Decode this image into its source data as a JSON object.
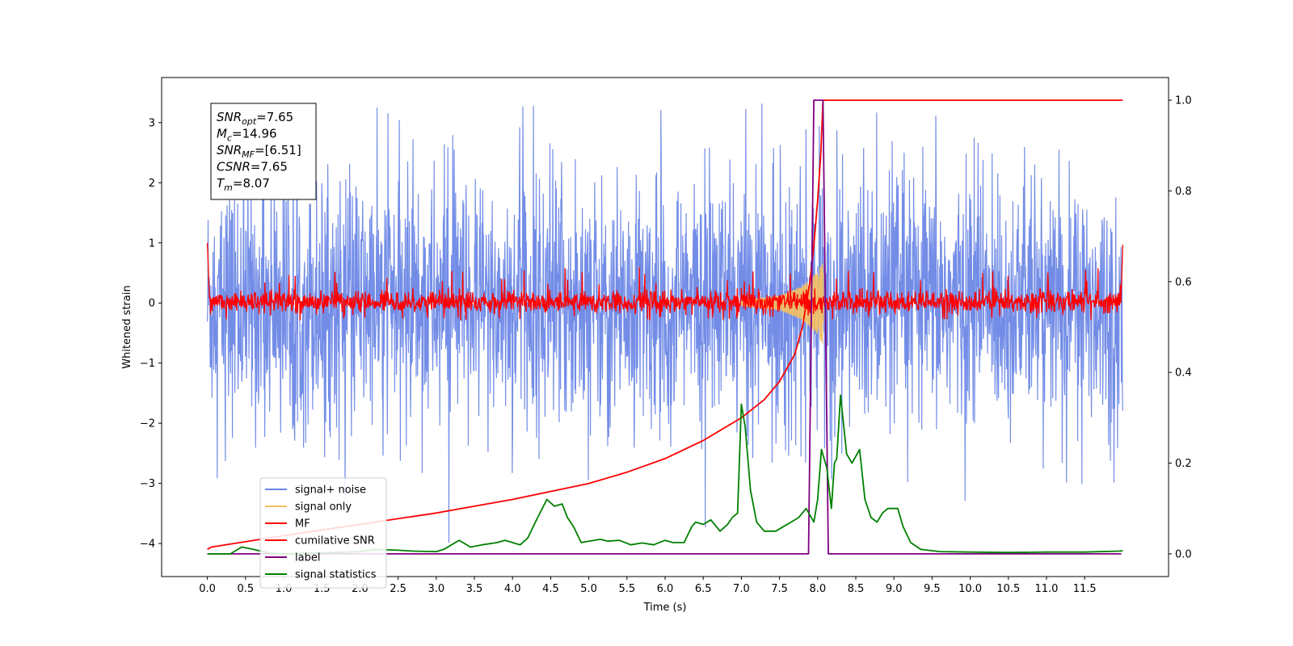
{
  "chart_data": {
    "type": "line",
    "title": "",
    "xlabel": "Time (s)",
    "ylabel": "Whitened strain",
    "xlim": [
      -0.6,
      12.6
    ],
    "ylim": [
      -4.55,
      3.75
    ],
    "y2lim": [
      -0.05,
      1.05
    ],
    "x_ticks": [
      0.0,
      0.5,
      1.0,
      1.5,
      2.0,
      2.5,
      3.0,
      3.5,
      4.0,
      4.5,
      5.0,
      5.5,
      6.0,
      6.5,
      7.0,
      7.5,
      8.0,
      8.5,
      9.0,
      9.5,
      10.0,
      10.5,
      11.0,
      11.5
    ],
    "x_tick_labels": [
      "0.0",
      "0.5",
      "1.0",
      "1.5",
      "2.0",
      "2.5",
      "3.0",
      "3.5",
      "4.0",
      "4.5",
      "5.0",
      "5.5",
      "6.0",
      "6.5",
      "7.0",
      "7.5",
      "8.0",
      "8.5",
      "9.0",
      "9.5",
      "10.0",
      "10.5",
      "11.0",
      "11.5"
    ],
    "y_ticks": [
      -4,
      -3,
      -2,
      -1,
      0,
      1,
      2,
      3
    ],
    "y_tick_labels": [
      "−4",
      "−3",
      "−2",
      "−1",
      "0",
      "1",
      "2",
      "3"
    ],
    "y2_ticks": [
      0.0,
      0.2,
      0.4,
      0.6,
      0.8,
      1.0
    ],
    "y2_tick_labels": [
      "0.0",
      "0.2",
      "0.4",
      "0.6",
      "0.8",
      "1.0"
    ],
    "grid": false,
    "legend_position": "bottom-left",
    "series": [
      {
        "name": "signal+ noise",
        "axis": "left",
        "color": "#6b87e6",
        "style": "noise envelope",
        "x_range": [
          0.0,
          12.0
        ],
        "typical_range": [
          -1.6,
          1.6
        ],
        "peak_max": 3.42,
        "peak_min": -4.35
      },
      {
        "name": "signal only",
        "axis": "left",
        "color": "#f5c060",
        "style": "chirp",
        "x_range": [
          7.0,
          8.07
        ],
        "amplitude_envelope": [
          [
            7.0,
            0.05
          ],
          [
            7.5,
            0.12
          ],
          [
            7.8,
            0.28
          ],
          [
            8.0,
            0.52
          ],
          [
            8.07,
            0.7
          ],
          [
            8.08,
            0.0
          ]
        ]
      },
      {
        "name": "MF",
        "axis": "left",
        "color": "#ff0000",
        "style": "noise envelope",
        "x_range": [
          0.0,
          12.0
        ],
        "typical_range": [
          -0.2,
          0.25
        ],
        "peak_max": 0.62,
        "peak_min": -0.3,
        "endpoints": [
          [
            0.0,
            1.0
          ],
          [
            0.02,
            -0.2
          ],
          [
            11.98,
            -0.2
          ],
          [
            12.0,
            0.97
          ]
        ]
      },
      {
        "name": "cumilative SNR",
        "axis": "right",
        "color": "#ff0000",
        "points": [
          [
            0.0,
            0.01
          ],
          [
            0.05,
            0.015
          ],
          [
            1.0,
            0.04
          ],
          [
            2.0,
            0.065
          ],
          [
            3.0,
            0.09
          ],
          [
            4.0,
            0.12
          ],
          [
            5.0,
            0.155
          ],
          [
            5.5,
            0.18
          ],
          [
            6.0,
            0.21
          ],
          [
            6.5,
            0.25
          ],
          [
            7.0,
            0.3
          ],
          [
            7.3,
            0.34
          ],
          [
            7.5,
            0.38
          ],
          [
            7.7,
            0.44
          ],
          [
            7.8,
            0.5
          ],
          [
            7.9,
            0.6
          ],
          [
            7.95,
            0.68
          ],
          [
            8.0,
            0.78
          ],
          [
            8.04,
            0.88
          ],
          [
            8.07,
            1.0
          ],
          [
            12.0,
            1.0
          ]
        ]
      },
      {
        "name": "label",
        "axis": "right",
        "color": "#800080",
        "points": [
          [
            0.0,
            0.0
          ],
          [
            7.88,
            0.0
          ],
          [
            7.95,
            1.0
          ],
          [
            8.07,
            1.0
          ],
          [
            8.14,
            0.0
          ],
          [
            11.98,
            0.0
          ]
        ]
      },
      {
        "name": "signal statistics",
        "axis": "right",
        "color": "#008000",
        "points": [
          [
            0.0,
            0.0
          ],
          [
            0.3,
            0.0
          ],
          [
            0.45,
            0.015
          ],
          [
            0.6,
            0.01
          ],
          [
            0.8,
            0.002
          ],
          [
            1.0,
            0.0
          ],
          [
            1.5,
            0.002
          ],
          [
            2.0,
            0.005
          ],
          [
            2.2,
            0.01
          ],
          [
            2.5,
            0.008
          ],
          [
            2.7,
            0.006
          ],
          [
            3.0,
            0.005
          ],
          [
            3.1,
            0.01
          ],
          [
            3.3,
            0.03
          ],
          [
            3.45,
            0.015
          ],
          [
            3.6,
            0.02
          ],
          [
            3.8,
            0.025
          ],
          [
            3.9,
            0.03
          ],
          [
            4.0,
            0.025
          ],
          [
            4.1,
            0.02
          ],
          [
            4.2,
            0.035
          ],
          [
            4.3,
            0.07
          ],
          [
            4.45,
            0.12
          ],
          [
            4.55,
            0.105
          ],
          [
            4.65,
            0.11
          ],
          [
            4.72,
            0.08
          ],
          [
            4.8,
            0.06
          ],
          [
            4.9,
            0.025
          ],
          [
            5.0,
            0.028
          ],
          [
            5.15,
            0.032
          ],
          [
            5.25,
            0.028
          ],
          [
            5.4,
            0.03
          ],
          [
            5.55,
            0.02
          ],
          [
            5.7,
            0.024
          ],
          [
            5.85,
            0.02
          ],
          [
            6.0,
            0.03
          ],
          [
            6.1,
            0.025
          ],
          [
            6.25,
            0.025
          ],
          [
            6.35,
            0.06
          ],
          [
            6.4,
            0.07
          ],
          [
            6.5,
            0.065
          ],
          [
            6.6,
            0.075
          ],
          [
            6.72,
            0.05
          ],
          [
            6.82,
            0.065
          ],
          [
            6.88,
            0.08
          ],
          [
            6.95,
            0.09
          ],
          [
            7.0,
            0.33
          ],
          [
            7.05,
            0.28
          ],
          [
            7.12,
            0.14
          ],
          [
            7.2,
            0.07
          ],
          [
            7.3,
            0.05
          ],
          [
            7.45,
            0.05
          ],
          [
            7.55,
            0.06
          ],
          [
            7.65,
            0.07
          ],
          [
            7.75,
            0.08
          ],
          [
            7.85,
            0.1
          ],
          [
            7.95,
            0.07
          ],
          [
            8.0,
            0.12
          ],
          [
            8.05,
            0.23
          ],
          [
            8.12,
            0.19
          ],
          [
            8.18,
            0.1
          ],
          [
            8.22,
            0.2
          ],
          [
            8.25,
            0.21
          ],
          [
            8.3,
            0.35
          ],
          [
            8.38,
            0.22
          ],
          [
            8.45,
            0.2
          ],
          [
            8.55,
            0.23
          ],
          [
            8.62,
            0.12
          ],
          [
            8.7,
            0.08
          ],
          [
            8.78,
            0.07
          ],
          [
            8.85,
            0.09
          ],
          [
            8.92,
            0.1
          ],
          [
            9.05,
            0.1
          ],
          [
            9.12,
            0.06
          ],
          [
            9.22,
            0.025
          ],
          [
            9.35,
            0.01
          ],
          [
            9.6,
            0.005
          ],
          [
            10.0,
            0.004
          ],
          [
            10.5,
            0.003
          ],
          [
            11.0,
            0.004
          ],
          [
            11.5,
            0.004
          ],
          [
            11.95,
            0.006
          ],
          [
            12.0,
            0.007
          ]
        ]
      }
    ],
    "annotation": {
      "lines": [
        {
          "sym": "SNR",
          "sub": "opt",
          "val": "=7.65"
        },
        {
          "sym": "M",
          "sub": "c",
          "val": "=14.96"
        },
        {
          "sym": "SNR",
          "sub": "MF",
          "val": "=[6.51]"
        },
        {
          "sym": "CSNR",
          "sub": "",
          "val": "=7.65"
        },
        {
          "sym": "T",
          "sub": "m",
          "val": "=8.07"
        }
      ]
    }
  }
}
